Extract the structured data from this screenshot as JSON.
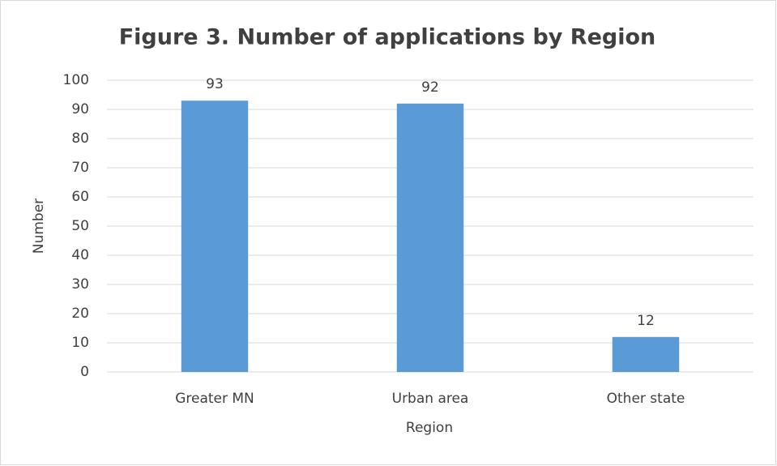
{
  "chart_data": {
    "type": "bar",
    "title": "Figure 3. Number of applications by Region",
    "x_label": "Region",
    "y_label": "Number",
    "categories": [
      "Greater MN",
      "Urban area",
      "Other state"
    ],
    "values": [
      93,
      92,
      12
    ],
    "color": "#5b9bd5",
    "ylim": [
      0,
      100
    ],
    "yticks": [
      0,
      10,
      20,
      30,
      40,
      50,
      60,
      70,
      80,
      90,
      100
    ],
    "grid": true,
    "data_labels": true
  }
}
